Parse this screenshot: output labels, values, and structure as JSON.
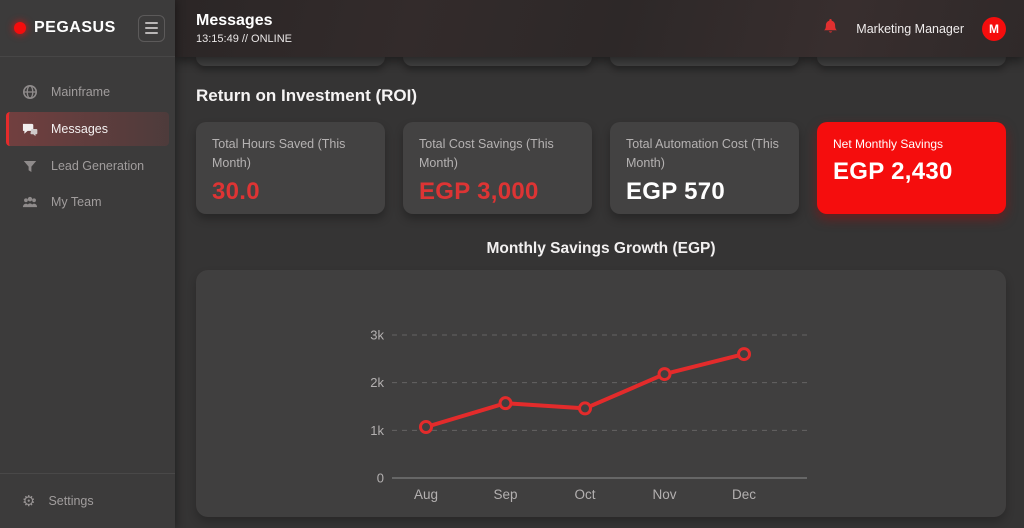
{
  "sidebar": {
    "logo_text": "PEGASUS",
    "items": [
      {
        "label": "Mainframe"
      },
      {
        "label": "Messages"
      },
      {
        "label": "Lead Generation"
      },
      {
        "label": "My Team"
      }
    ],
    "settings_label": "Settings"
  },
  "header": {
    "title": "Messages",
    "status_line": "13:15:49 // ONLINE",
    "user_role": "Marketing Manager",
    "avatar_initial": "M"
  },
  "roi": {
    "section_title": "Return on Investment (ROI)",
    "cards": [
      {
        "label": "Total Hours Saved (This Month)",
        "value": "30.0"
      },
      {
        "label": "Total Cost Savings (This Month)",
        "value": "EGP 3,000"
      },
      {
        "label": "Total Automation Cost (This Month)",
        "value": "EGP 570"
      },
      {
        "label": "Net Monthly Savings",
        "value": "EGP 2,430"
      }
    ]
  },
  "chart_data": {
    "type": "line",
    "title": "Monthly Savings Growth (EGP)",
    "categories": [
      "Aug",
      "Sep",
      "Oct",
      "Nov",
      "Dec"
    ],
    "series": [
      {
        "name": "Monthly Savings (EGP)",
        "values": [
          1070,
          1570,
          1460,
          2180,
          2600
        ]
      }
    ],
    "ylim": [
      0,
      3200
    ],
    "yticks": [
      0,
      1000,
      2000,
      3000
    ],
    "ytick_labels": [
      "0",
      "1k",
      "2k",
      "3k"
    ],
    "grid": "horizontal-dashed",
    "legend": "none",
    "line_color": "#e32b2b",
    "marker": "open-circle"
  },
  "colors": {
    "accent_red": "#e32b2b",
    "bright_red": "#f50d0d"
  }
}
